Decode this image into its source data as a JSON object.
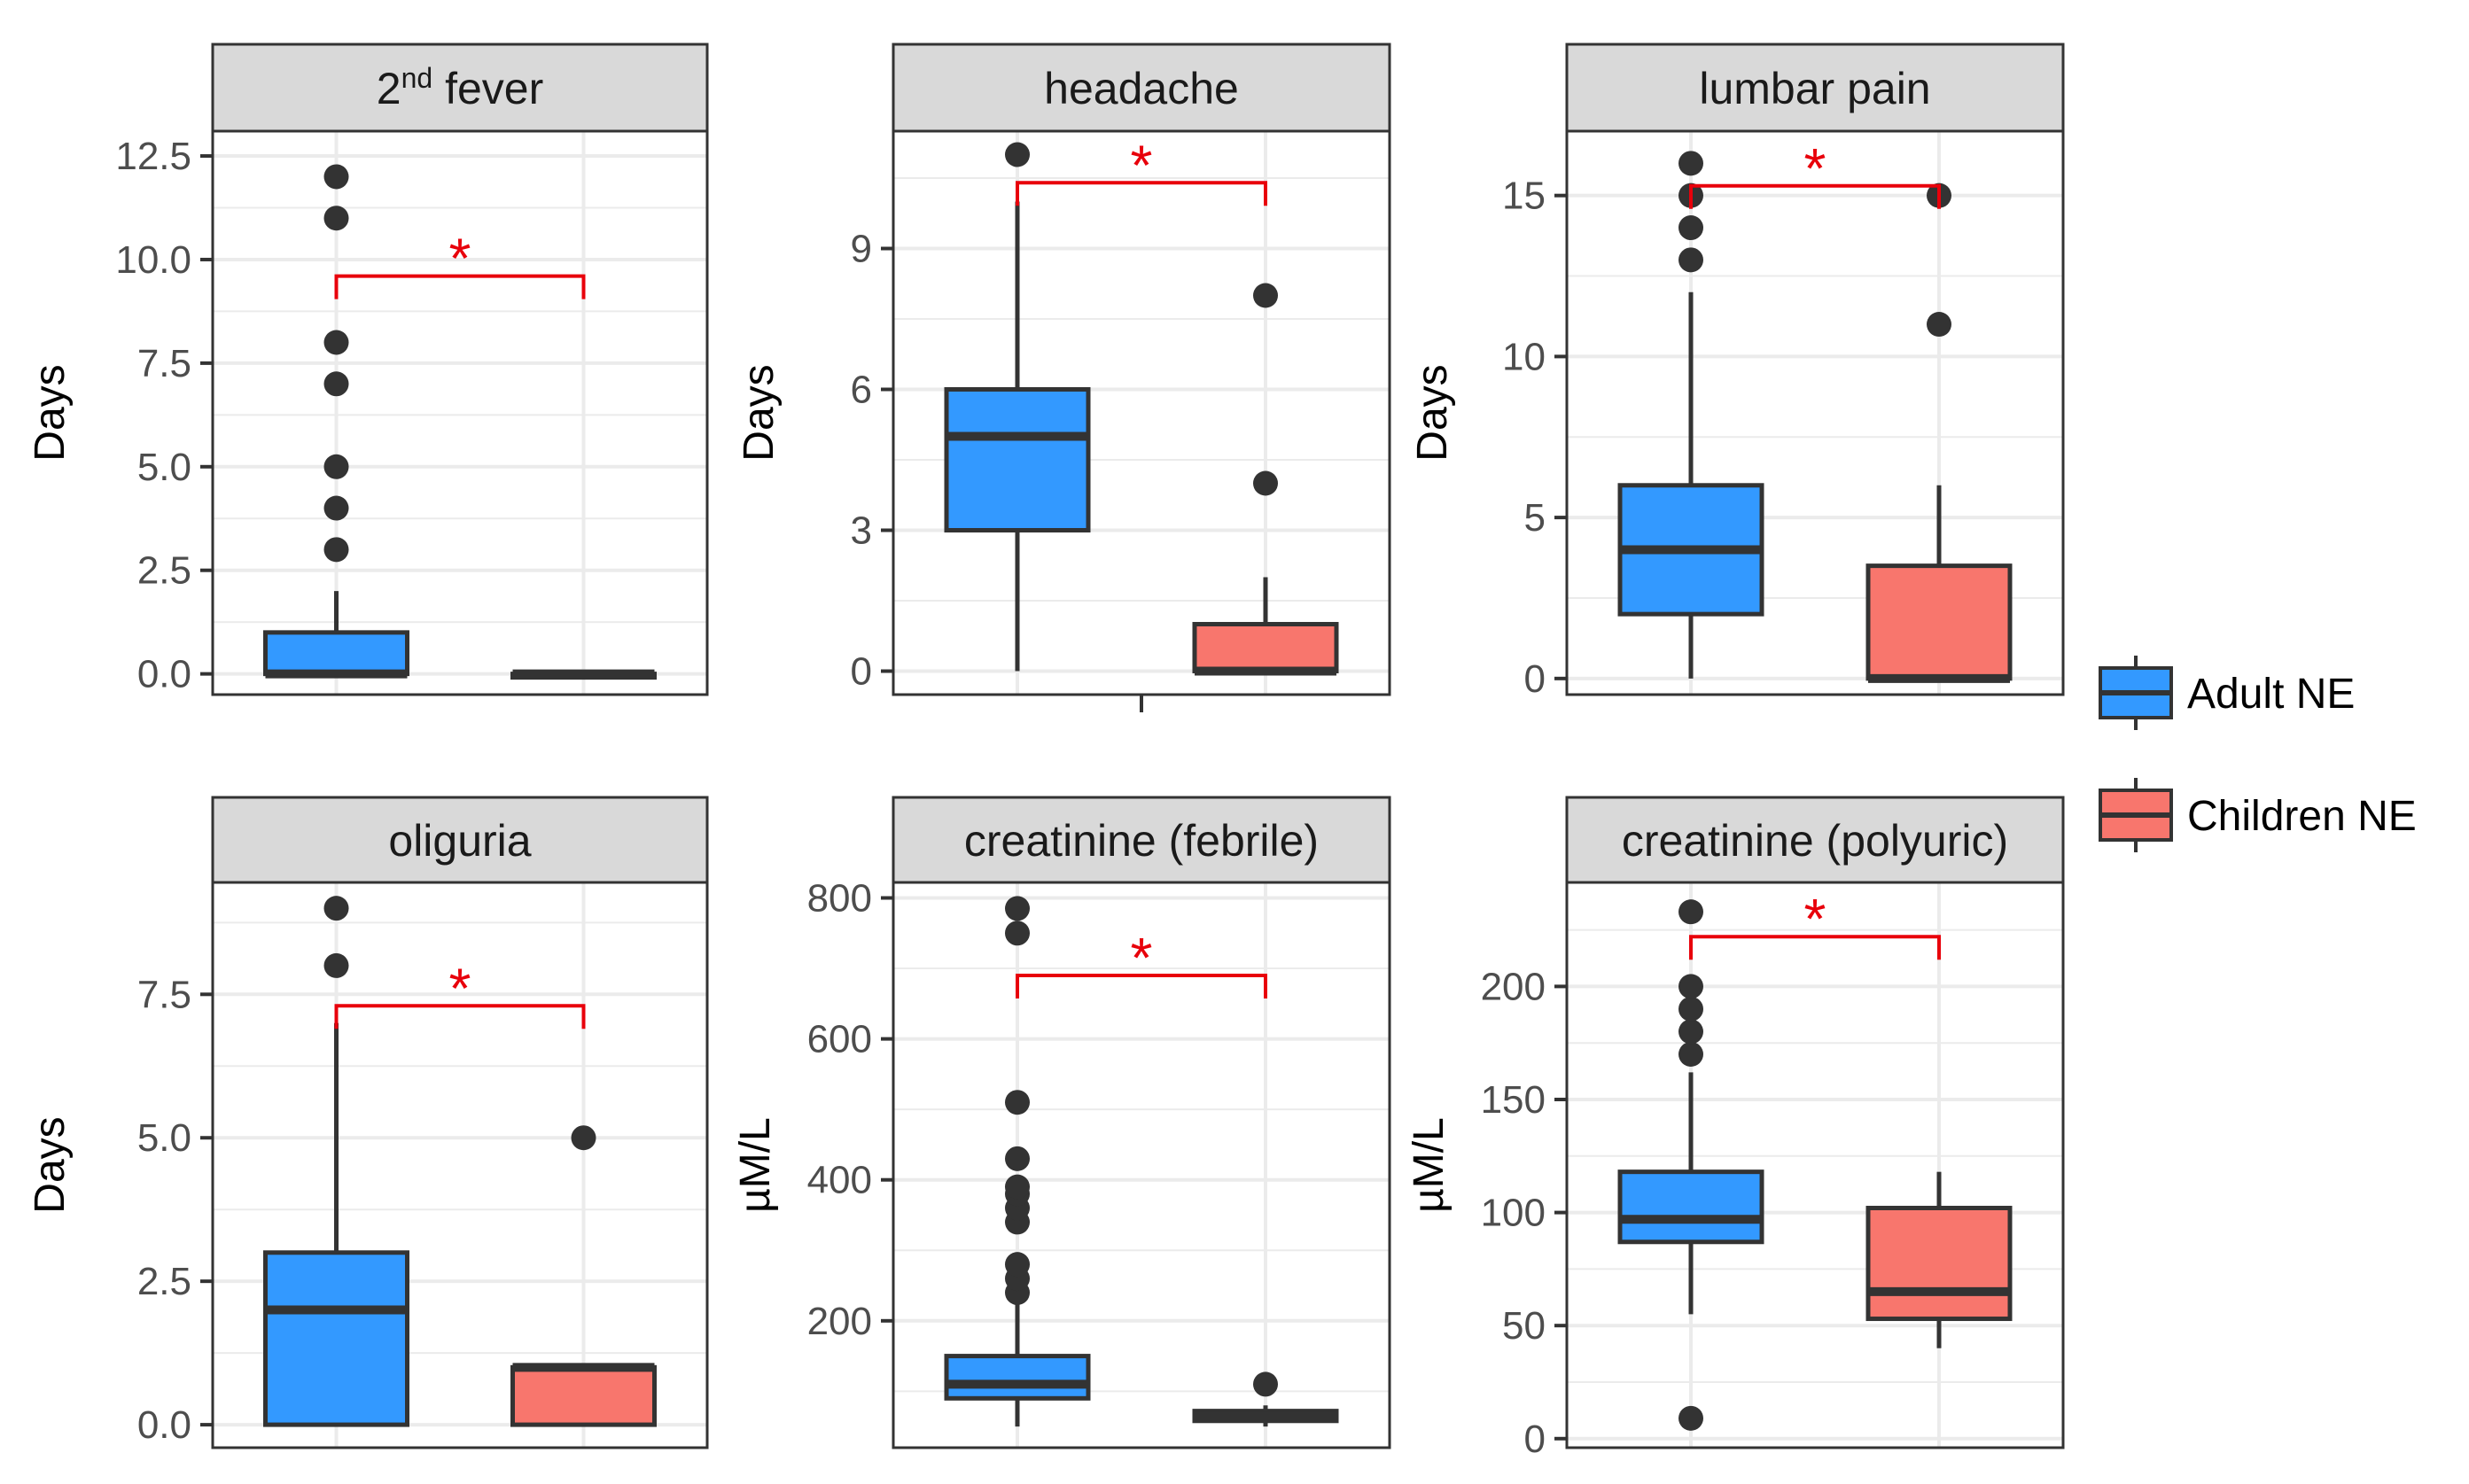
{
  "chart_data": [
    {
      "type": "box",
      "facet_label": "2nd fever",
      "title_main": "2",
      "title_sup": "nd",
      "title_rest": " fever",
      "ylabel": "Days",
      "ylim": [
        -0.5,
        13.1
      ],
      "yticks": [
        0,
        2.5,
        5,
        7.5,
        10,
        12.5
      ],
      "ytick_labels": [
        "0.0",
        "2.5",
        "5.0",
        "7.5",
        "10.0",
        "12.5"
      ],
      "groups": [
        {
          "name": "Adult NE",
          "q1": 0,
          "median": 0,
          "q3": 1,
          "whisker_low": 0,
          "whisker_high": 2,
          "outliers": [
            3,
            4,
            5,
            7,
            8,
            11,
            12
          ]
        },
        {
          "name": "Children NE",
          "q1": 0,
          "median": 0,
          "q3": 0,
          "whisker_low": 0,
          "whisker_high": 0,
          "outliers": []
        }
      ],
      "significance": {
        "label": "*",
        "y": 9.6
      },
      "x_tick": false
    },
    {
      "type": "box",
      "facet_label": "headache",
      "ylabel": "Days",
      "ylim": [
        -0.5,
        11.5
      ],
      "yticks": [
        0,
        3,
        6,
        9
      ],
      "ytick_labels": [
        "0",
        "3",
        "6",
        "9"
      ],
      "groups": [
        {
          "name": "Adult NE",
          "q1": 3,
          "median": 5,
          "q3": 6,
          "whisker_low": 0,
          "whisker_high": 10,
          "outliers": [
            11
          ]
        },
        {
          "name": "Children NE",
          "q1": 0,
          "median": 0,
          "q3": 1,
          "whisker_low": 0,
          "whisker_high": 2,
          "outliers": [
            4,
            8
          ]
        }
      ],
      "significance": {
        "label": "*",
        "y": 10.4
      },
      "x_tick": true
    },
    {
      "type": "box",
      "facet_label": "lumbar pain",
      "ylabel": "Days",
      "ylim": [
        -0.5,
        17.0
      ],
      "yticks": [
        0,
        5,
        10,
        15
      ],
      "ytick_labels": [
        "0",
        "5",
        "10",
        "15"
      ],
      "groups": [
        {
          "name": "Adult NE",
          "q1": 2,
          "median": 4,
          "q3": 6,
          "whisker_low": 0,
          "whisker_high": 12,
          "outliers": [
            13,
            14,
            15,
            16
          ]
        },
        {
          "name": "Children NE",
          "q1": 0,
          "median": 0,
          "q3": 3.5,
          "whisker_low": 0,
          "whisker_high": 6,
          "outliers": [
            11,
            15
          ]
        }
      ],
      "significance": {
        "label": "*",
        "y": 15.3
      },
      "x_tick": false
    },
    {
      "type": "box",
      "facet_label": "oliguria",
      "ylabel": "Days",
      "ylim": [
        -0.4,
        9.45
      ],
      "yticks": [
        0,
        2.5,
        5,
        7.5
      ],
      "ytick_labels": [
        "0.0",
        "2.5",
        "5.0",
        "7.5"
      ],
      "groups": [
        {
          "name": "Adult NE",
          "q1": 0,
          "median": 2,
          "q3": 3,
          "whisker_low": 0,
          "whisker_high": 7,
          "outliers": [
            8,
            9
          ]
        },
        {
          "name": "Children NE",
          "q1": 0,
          "median": 1,
          "q3": 1,
          "whisker_low": 0,
          "whisker_high": 1,
          "outliers": [
            5
          ]
        }
      ],
      "significance": {
        "label": "*",
        "y": 7.3
      },
      "x_tick": false
    },
    {
      "type": "box",
      "facet_label": "creatinine (febrile)",
      "ylabel": "µM/L",
      "ylim": [
        20,
        822
      ],
      "yticks": [
        200,
        400,
        600,
        800
      ],
      "ytick_labels": [
        "200",
        "400",
        "600",
        "800"
      ],
      "groups": [
        {
          "name": "Adult NE",
          "q1": 90,
          "median": 110,
          "q3": 150,
          "whisker_low": 50,
          "whisker_high": 225,
          "outliers": [
            240,
            260,
            280,
            340,
            360,
            380,
            390,
            430,
            510,
            750,
            785
          ]
        },
        {
          "name": "Children NE",
          "q1": 58,
          "median": 65,
          "q3": 72,
          "whisker_low": 50,
          "whisker_high": 80,
          "outliers": [
            110
          ]
        }
      ],
      "significance": {
        "label": "*",
        "y": 690
      },
      "x_tick": false
    },
    {
      "type": "box",
      "facet_label": "creatinine (polyuric)",
      "ylabel": "µM/L",
      "ylim": [
        -4,
        246
      ],
      "yticks": [
        0,
        50,
        100,
        150,
        200
      ],
      "ytick_labels": [
        "0",
        "50",
        "100",
        "150",
        "200"
      ],
      "groups": [
        {
          "name": "Adult NE",
          "q1": 87,
          "median": 97,
          "q3": 118,
          "whisker_low": 55,
          "whisker_high": 162,
          "outliers": [
            9,
            170,
            180,
            190,
            200,
            233
          ]
        },
        {
          "name": "Children NE",
          "q1": 53,
          "median": 65,
          "q3": 102,
          "whisker_low": 40,
          "whisker_high": 118,
          "outliers": []
        }
      ],
      "significance": {
        "label": "*",
        "y": 222
      },
      "x_tick": false
    }
  ],
  "legend": {
    "items": [
      {
        "label": "Adult NE",
        "color": "#3399ff"
      },
      {
        "label": "Children NE",
        "color": "#f8766d"
      }
    ]
  },
  "colors": {
    "adult": "#3399ff",
    "children": "#f8766d",
    "significance": "#e8000b",
    "strip_bg": "#d9d9d9",
    "grid": "#ebebeb",
    "outline": "#333333"
  }
}
